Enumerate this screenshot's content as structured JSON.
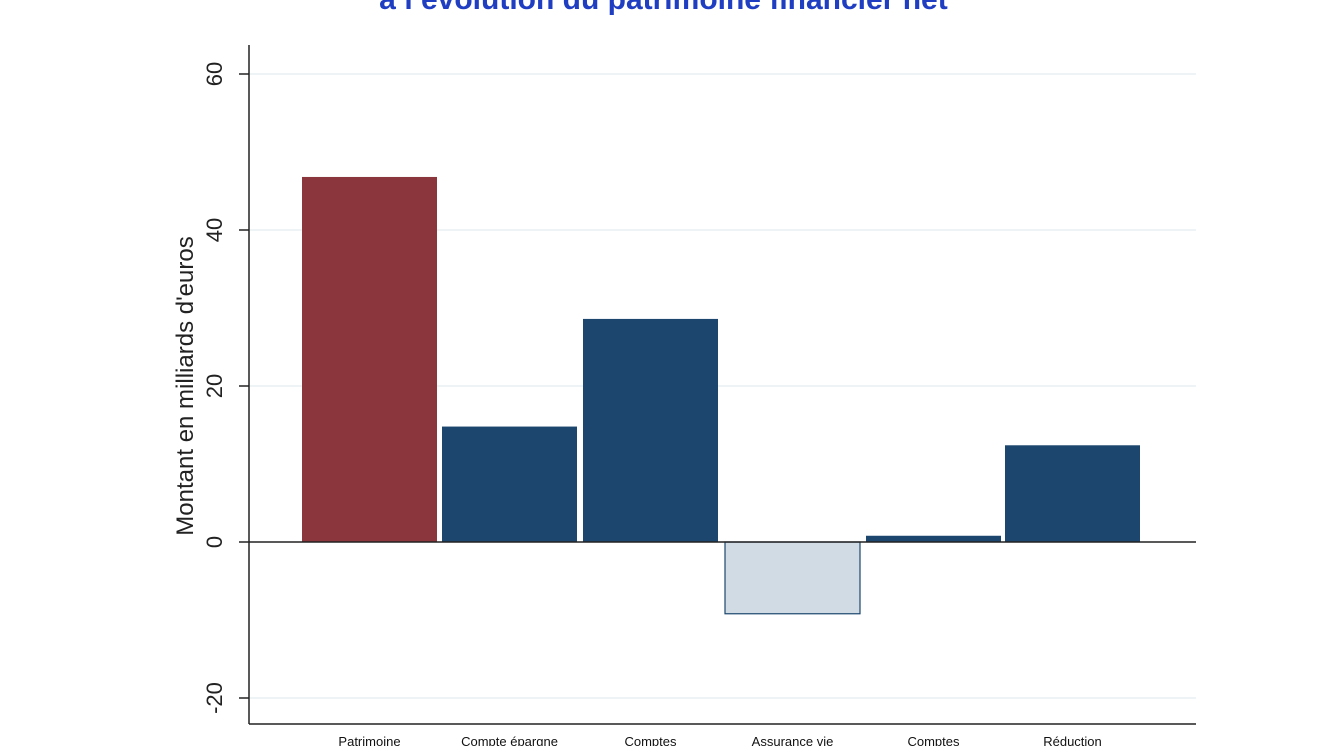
{
  "chart_data": {
    "type": "bar",
    "title": "à l’évolution du patrimoine financier net",
    "ylabel": "Montant en milliards d'euros",
    "xlabel": "",
    "ylim": [
      -20,
      60
    ],
    "yticks": [
      60,
      40,
      20,
      0,
      -20
    ],
    "grid": true,
    "legend": "none",
    "categories": [
      "Patrimoine",
      "Compte épargne",
      "Comptes",
      "Assurance vie",
      "Comptes",
      "Réduction"
    ],
    "values": [
      46.8,
      14.8,
      28.6,
      -9.2,
      0.8,
      12.4
    ],
    "colors": [
      "#8b353c",
      "#1c466e",
      "#1c466e",
      "#d1dbe3",
      "#1c466e",
      "#1c466e"
    ]
  }
}
